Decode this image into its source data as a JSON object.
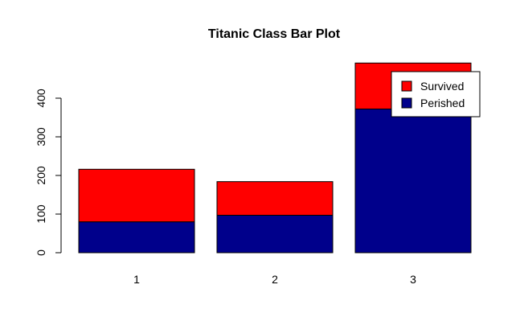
{
  "chart_data": {
    "type": "bar",
    "stacked": true,
    "title": "Titanic Class Bar Plot",
    "xlabel": "",
    "ylabel": "",
    "categories": [
      "1",
      "2",
      "3"
    ],
    "series": [
      {
        "name": "Perished",
        "values": [
          80,
          97,
          372
        ],
        "color": "#00008b"
      },
      {
        "name": "Survived",
        "values": [
          136,
          87,
          119
        ],
        "color": "#ff0000"
      }
    ],
    "yticks": [
      0,
      100,
      200,
      300,
      400
    ],
    "ylim": [
      0,
      491
    ],
    "legend": {
      "position": "top-right",
      "order": [
        "Survived",
        "Perished"
      ]
    },
    "grid": false
  }
}
